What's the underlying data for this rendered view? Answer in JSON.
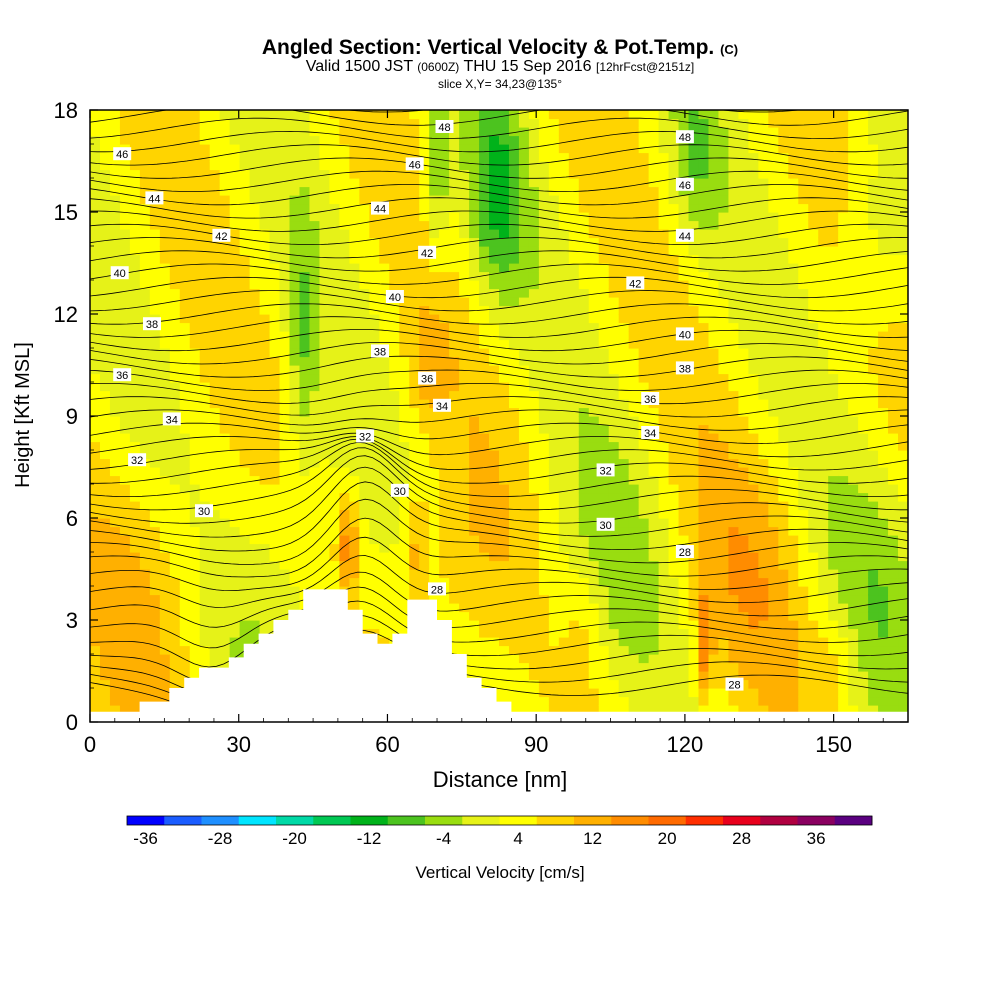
{
  "chart_data": {
    "type": "heatmap",
    "title": "Angled Section: Vertical Velocity & Pot.Temp.",
    "title_unit": "(C)",
    "subtitle_main": "Valid 1500 JST",
    "subtitle_utc": "(0600Z)",
    "subtitle_date": "THU 15 Sep 2016",
    "subtitle_fcst": "[12hrFcst@2151z]",
    "slice_label": "slice X,Y= 34,23@135°",
    "xlabel": "Distance [nm]",
    "ylabel": "Height [Kft MSL]",
    "xlim": [
      0,
      165
    ],
    "ylim": [
      0,
      18
    ],
    "x_ticks": [
      "0",
      "30",
      "60",
      "90",
      "120",
      "150"
    ],
    "y_ticks": [
      "0",
      "3",
      "6",
      "9",
      "12",
      "15",
      "18"
    ],
    "colorbar": {
      "label": "Vertical Velocity [cm/s]",
      "tick_labels": [
        "-36",
        "-28",
        "-20",
        "-12",
        "-4",
        "4",
        "12",
        "20",
        "28",
        "36"
      ],
      "colors": [
        "#0000ff",
        "#1a5cff",
        "#1e8fff",
        "#00e5ff",
        "#00d9a6",
        "#00c853",
        "#00b21a",
        "#4cc31f",
        "#99dd10",
        "#e6f218",
        "#ffff00",
        "#ffd400",
        "#ffb000",
        "#ff8c00",
        "#ff6a00",
        "#ff2e00",
        "#e8001c",
        "#b00040",
        "#8a0060",
        "#5a0080"
      ]
    },
    "isentrope_labels": [
      {
        "text": "46",
        "x": 6.5,
        "y": 16.7
      },
      {
        "text": "44",
        "x": 13.0,
        "y": 15.4
      },
      {
        "text": "42",
        "x": 26.5,
        "y": 14.3
      },
      {
        "text": "40",
        "x": 6.0,
        "y": 13.2
      },
      {
        "text": "38",
        "x": 12.5,
        "y": 11.7
      },
      {
        "text": "36",
        "x": 6.5,
        "y": 10.2
      },
      {
        "text": "34",
        "x": 16.5,
        "y": 8.9
      },
      {
        "text": "32",
        "x": 9.5,
        "y": 7.7
      },
      {
        "text": "30",
        "x": 23.0,
        "y": 6.2
      },
      {
        "text": "48",
        "x": 71.5,
        "y": 17.5
      },
      {
        "text": "46",
        "x": 65.5,
        "y": 16.4
      },
      {
        "text": "44",
        "x": 58.5,
        "y": 15.1
      },
      {
        "text": "42",
        "x": 68.0,
        "y": 13.8
      },
      {
        "text": "40",
        "x": 61.5,
        "y": 12.5
      },
      {
        "text": "38",
        "x": 58.5,
        "y": 10.9
      },
      {
        "text": "36",
        "x": 68.0,
        "y": 10.1
      },
      {
        "text": "34",
        "x": 71.0,
        "y": 9.3
      },
      {
        "text": "32",
        "x": 55.5,
        "y": 8.4
      },
      {
        "text": "30",
        "x": 62.5,
        "y": 6.8
      },
      {
        "text": "28",
        "x": 70.0,
        "y": 3.9
      },
      {
        "text": "48",
        "x": 120.0,
        "y": 17.2
      },
      {
        "text": "46",
        "x": 120.0,
        "y": 15.8
      },
      {
        "text": "44",
        "x": 120.0,
        "y": 14.3
      },
      {
        "text": "42",
        "x": 110.0,
        "y": 12.9
      },
      {
        "text": "40",
        "x": 120.0,
        "y": 11.4
      },
      {
        "text": "38",
        "x": 120.0,
        "y": 10.4
      },
      {
        "text": "36",
        "x": 113.0,
        "y": 9.5
      },
      {
        "text": "34",
        "x": 113.0,
        "y": 8.5
      },
      {
        "text": "32",
        "x": 104.0,
        "y": 7.4
      },
      {
        "text": "30",
        "x": 104.0,
        "y": 5.8
      },
      {
        "text": "28",
        "x": 120.0,
        "y": 5.0
      },
      {
        "text": "28",
        "x": 130.0,
        "y": 1.1
      }
    ],
    "terrain": [
      [
        0,
        0.3
      ],
      [
        10,
        0.3
      ],
      [
        10,
        0.6
      ],
      [
        16,
        0.6
      ],
      [
        16,
        1.0
      ],
      [
        19,
        1.0
      ],
      [
        19,
        1.3
      ],
      [
        22,
        1.3
      ],
      [
        22,
        1.6
      ],
      [
        28,
        1.6
      ],
      [
        28,
        1.9
      ],
      [
        31,
        1.9
      ],
      [
        31,
        2.3
      ],
      [
        34,
        2.3
      ],
      [
        34,
        2.6
      ],
      [
        37,
        2.6
      ],
      [
        37,
        3.0
      ],
      [
        40,
        3.0
      ],
      [
        40,
        3.3
      ],
      [
        43,
        3.3
      ],
      [
        43,
        3.9
      ],
      [
        52,
        3.9
      ],
      [
        52,
        3.3
      ],
      [
        55,
        3.3
      ],
      [
        55,
        2.6
      ],
      [
        58,
        2.6
      ],
      [
        58,
        2.3
      ],
      [
        61,
        2.3
      ],
      [
        61,
        2.6
      ],
      [
        64,
        2.6
      ],
      [
        64,
        3.6
      ],
      [
        70,
        3.6
      ],
      [
        70,
        3.0
      ],
      [
        73,
        3.0
      ],
      [
        73,
        2.0
      ],
      [
        76,
        2.0
      ],
      [
        76,
        1.3
      ],
      [
        79,
        1.3
      ],
      [
        79,
        1.0
      ],
      [
        82,
        1.0
      ],
      [
        82,
        0.6
      ],
      [
        85,
        0.6
      ],
      [
        85,
        0.3
      ],
      [
        165,
        0.3
      ]
    ]
  }
}
